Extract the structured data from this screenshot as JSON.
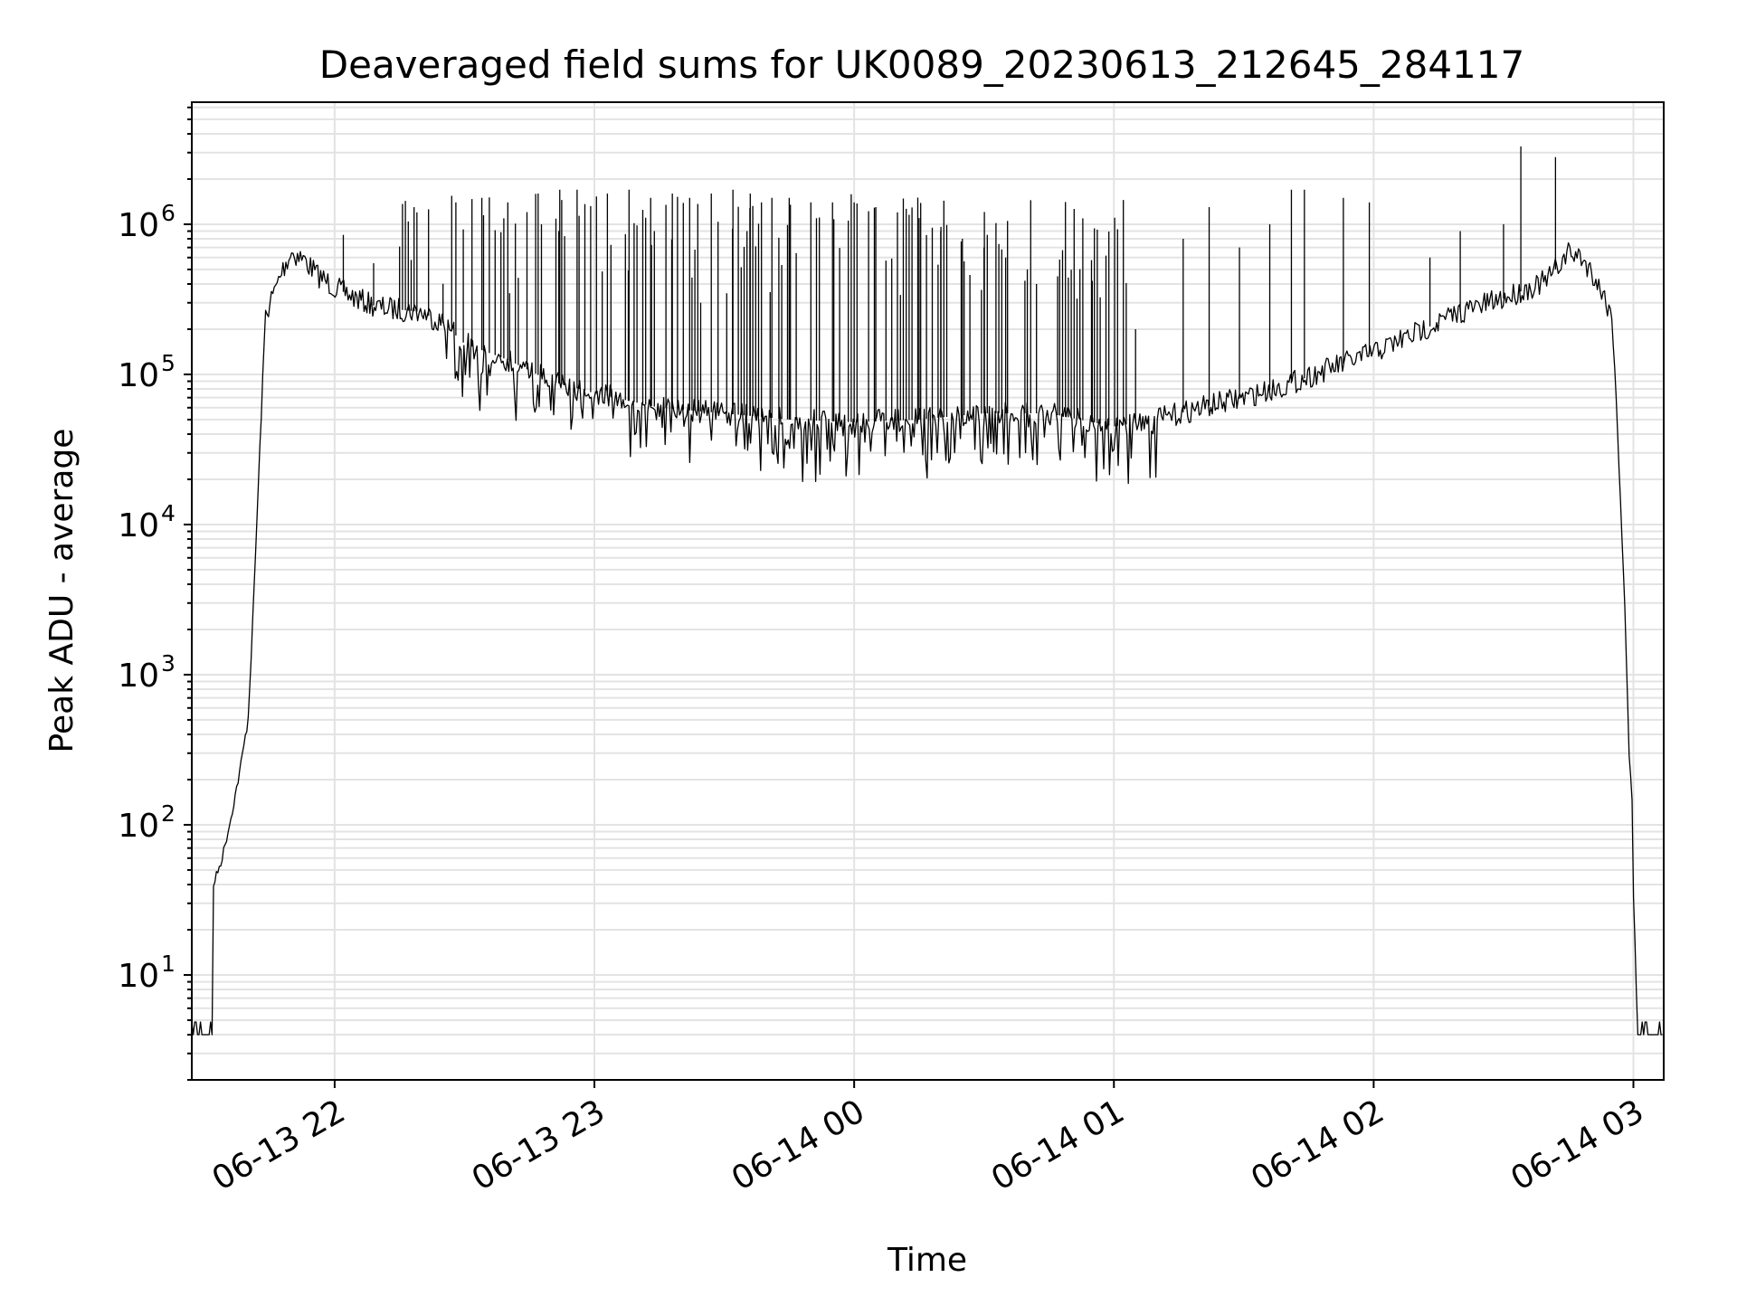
{
  "chart_data": {
    "type": "line",
    "title": "Deaveraged field sums for UK0089_20230613_212645_284117",
    "xlabel": "Time",
    "ylabel": "Peak ADU - average",
    "yscale": "log",
    "grid": true,
    "xlim": [
      "2023-06-13 21:27",
      "2023-06-14 03:07"
    ],
    "ylim": [
      2,
      6500000
    ],
    "x_ticks": [
      {
        "value": "2023-06-13 22:00",
        "label": "06-13 22"
      },
      {
        "value": "2023-06-13 23:00",
        "label": "06-13 23"
      },
      {
        "value": "2023-06-14 00:00",
        "label": "06-14 00"
      },
      {
        "value": "2023-06-14 01:00",
        "label": "06-14 01"
      },
      {
        "value": "2023-06-14 02:00",
        "label": "06-14 02"
      },
      {
        "value": "2023-06-14 03:00",
        "label": "06-14 03"
      }
    ],
    "y_ticks": [
      {
        "value": 10,
        "label_base": "10",
        "label_exp": "1"
      },
      {
        "value": 100,
        "label_base": "10",
        "label_exp": "2"
      },
      {
        "value": 1000,
        "label_base": "10",
        "label_exp": "3"
      },
      {
        "value": 10000,
        "label_base": "10",
        "label_exp": "4"
      },
      {
        "value": 100000,
        "label_base": "10",
        "label_exp": "5"
      },
      {
        "value": 1000000,
        "label_base": "10",
        "label_exp": "6"
      }
    ],
    "series": [
      {
        "color": "#000000",
        "points": [
          [
            "2023-06-13 21:27",
            4
          ],
          [
            "2023-06-13 21:32",
            4
          ],
          [
            "2023-06-13 21:32",
            40
          ],
          [
            "2023-06-13 21:34",
            60
          ],
          [
            "2023-06-13 21:36",
            110
          ],
          [
            "2023-06-13 21:38",
            220
          ],
          [
            "2023-06-13 21:40",
            500
          ],
          [
            "2023-06-13 21:41",
            2000
          ],
          [
            "2023-06-13 21:42",
            10000
          ],
          [
            "2023-06-13 21:43",
            50000
          ],
          [
            "2023-06-13 21:44",
            250000
          ],
          [
            "2023-06-13 21:46",
            350000
          ],
          [
            "2023-06-13 21:48",
            500000
          ],
          [
            "2023-06-13 21:50",
            650000
          ],
          [
            "2023-06-13 21:53",
            580000
          ],
          [
            "2023-06-13 21:56",
            460000
          ],
          [
            "2023-06-13 22:00",
            380000
          ],
          [
            "2023-06-13 22:05",
            320000
          ],
          [
            "2023-06-13 22:10",
            280000
          ],
          [
            "2023-06-13 22:15",
            270000
          ],
          [
            "2023-06-13 22:20",
            260000
          ],
          [
            "2023-06-13 22:25",
            220000
          ],
          [
            "2023-06-13 22:30",
            160000
          ],
          [
            "2023-06-13 22:40",
            125000
          ],
          [
            "2023-06-13 22:50",
            90000
          ],
          [
            "2023-06-13 23:00",
            75000
          ],
          [
            "2023-06-13 23:15",
            60000
          ],
          [
            "2023-06-13 23:30",
            55000
          ],
          [
            "2023-06-13 23:45",
            50000
          ],
          [
            "2023-06-14 00:00",
            48000
          ],
          [
            "2023-06-14 00:15",
            50000
          ],
          [
            "2023-06-14 00:30",
            55000
          ],
          [
            "2023-06-14 00:45",
            55000
          ],
          [
            "2023-06-14 01:00",
            45000
          ],
          [
            "2023-06-14 01:10",
            50000
          ],
          [
            "2023-06-14 01:20",
            60000
          ],
          [
            "2023-06-14 01:30",
            70000
          ],
          [
            "2023-06-14 01:40",
            85000
          ],
          [
            "2023-06-14 01:50",
            110000
          ],
          [
            "2023-06-14 02:00",
            140000
          ],
          [
            "2023-06-14 02:10",
            190000
          ],
          [
            "2023-06-14 02:20",
            260000
          ],
          [
            "2023-06-14 02:30",
            320000
          ],
          [
            "2023-06-14 02:40",
            420000
          ],
          [
            "2023-06-14 02:45",
            650000
          ],
          [
            "2023-06-14 02:48",
            600000
          ],
          [
            "2023-06-14 02:51",
            450000
          ],
          [
            "2023-06-14 02:53",
            340000
          ],
          [
            "2023-06-14 02:55",
            250000
          ],
          [
            "2023-06-14 02:56",
            70000
          ],
          [
            "2023-06-14 02:57",
            15000
          ],
          [
            "2023-06-14 02:58",
            3000
          ],
          [
            "2023-06-14 02:59",
            300
          ],
          [
            "2023-06-14 03:00",
            100
          ],
          [
            "2023-06-14 03:00",
            35
          ],
          [
            "2023-06-14 03:01",
            4
          ],
          [
            "2023-06-14 03:07",
            4
          ]
        ],
        "spikes": [
          [
            "2023-06-13 22:02",
            850000
          ],
          [
            "2023-06-13 22:09",
            550000
          ],
          [
            "2023-06-13 22:19",
            1200000
          ],
          [
            "2023-06-13 22:28",
            1400000
          ],
          [
            "2023-06-13 22:34",
            1500000
          ],
          [
            "2023-06-13 22:40",
            1400000
          ],
          [
            "2023-06-13 22:47",
            1600000
          ],
          [
            "2023-06-13 22:52",
            1700000
          ],
          [
            "2023-06-13 22:56",
            1700000
          ],
          [
            "2023-06-13 23:03",
            1600000
          ],
          [
            "2023-06-13 23:08",
            1700000
          ],
          [
            "2023-06-13 23:13",
            1500000
          ],
          [
            "2023-06-13 23:18",
            1600000
          ],
          [
            "2023-06-13 23:22",
            1500000
          ],
          [
            "2023-06-13 23:27",
            1600000
          ],
          [
            "2023-06-13 23:32",
            1700000
          ],
          [
            "2023-06-13 23:36",
            1600000
          ],
          [
            "2023-06-13 23:41",
            1500000
          ],
          [
            "2023-06-13 23:45",
            1500000
          ],
          [
            "2023-06-13 23:50",
            1400000
          ],
          [
            "2023-06-13 23:55",
            1400000
          ],
          [
            "2023-06-14 00:00",
            1400000
          ],
          [
            "2023-06-14 00:05",
            1300000
          ],
          [
            "2023-06-14 00:10",
            1200000
          ],
          [
            "2023-06-14 00:15",
            1100000
          ],
          [
            "2023-06-14 00:20",
            900000
          ],
          [
            "2023-06-14 00:25",
            800000
          ],
          [
            "2023-06-14 00:30",
            700000
          ],
          [
            "2023-06-14 00:35",
            600000
          ],
          [
            "2023-06-14 00:40",
            500000
          ],
          [
            "2023-06-14 00:47",
            450000
          ],
          [
            "2023-06-14 00:55",
            420000
          ],
          [
            "2023-06-14 01:05",
            200000
          ],
          [
            "2023-06-14 01:16",
            800000
          ],
          [
            "2023-06-14 01:22",
            1300000
          ],
          [
            "2023-06-14 01:29",
            700000
          ],
          [
            "2023-06-14 01:36",
            1000000
          ],
          [
            "2023-06-14 01:41",
            1700000
          ],
          [
            "2023-06-14 01:44",
            1700000
          ],
          [
            "2023-06-14 01:53",
            1500000
          ],
          [
            "2023-06-14 01:59",
            1400000
          ],
          [
            "2023-06-14 02:13",
            600000
          ],
          [
            "2023-06-14 02:20",
            900000
          ],
          [
            "2023-06-14 02:30",
            1000000
          ],
          [
            "2023-06-14 02:34",
            3300000
          ],
          [
            "2023-06-14 02:42",
            2800000
          ]
        ]
      }
    ]
  }
}
